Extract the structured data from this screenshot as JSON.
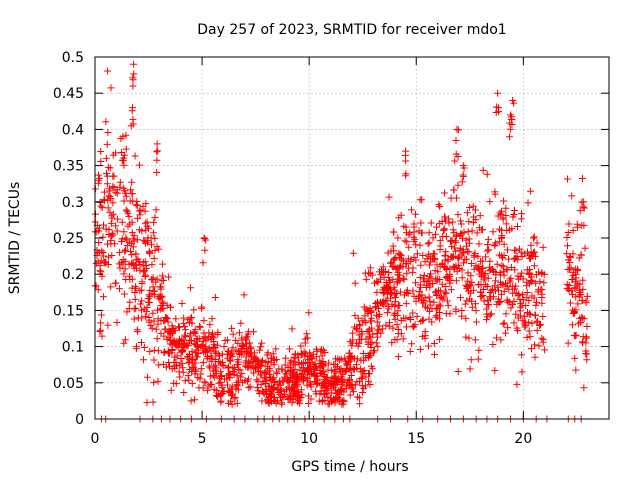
{
  "chart_data": {
    "type": "scatter",
    "title": "Day 257 of 2023, SRMTID for receiver mdo1",
    "xlabel": "GPS time / hours",
    "ylabel": "SRMTID / TECUs",
    "xlim": [
      0,
      24
    ],
    "ylim": [
      0,
      0.5
    ],
    "xticks": [
      0,
      5,
      10,
      15,
      20
    ],
    "xtick_labels": [
      "0",
      "5",
      "10",
      "15",
      "20"
    ],
    "yticks": [
      0,
      0.05,
      0.1,
      0.15,
      0.2,
      0.25,
      0.3,
      0.35,
      0.4,
      0.45,
      0.5
    ],
    "ytick_labels": [
      "0",
      "0.05",
      "0.1",
      "0.15",
      "0.2",
      "0.25",
      "0.3",
      "0.35",
      "0.4",
      "0.45",
      "0.5"
    ],
    "grid": true,
    "marker": "plus",
    "marker_color": "#ff0000",
    "series": [
      {
        "name": "SRMTID",
        "profile": {
          "x": [
            0,
            0.5,
            1,
            1.5,
            2,
            2.5,
            3,
            3.5,
            4,
            4.5,
            5,
            5.5,
            6,
            6.5,
            7,
            7.5,
            8,
            8.5,
            9,
            9.5,
            10,
            10.5,
            11,
            11.5,
            12,
            12.5,
            13,
            13.5,
            14,
            14.5,
            15,
            15.5,
            16,
            16.5,
            17,
            17.5,
            18,
            18.5,
            19,
            19.5,
            20,
            20.5,
            21,
            22,
            22.5,
            23
          ],
          "y": [
            0.22,
            0.27,
            0.28,
            0.26,
            0.22,
            0.19,
            0.16,
            0.11,
            0.09,
            0.1,
            0.1,
            0.09,
            0.06,
            0.07,
            0.09,
            0.07,
            0.05,
            0.045,
            0.05,
            0.055,
            0.07,
            0.06,
            0.05,
            0.045,
            0.07,
            0.1,
            0.14,
            0.17,
            0.19,
            0.2,
            0.2,
            0.18,
            0.2,
            0.21,
            0.22,
            0.2,
            0.19,
            0.2,
            0.21,
            0.2,
            0.18,
            0.17,
            0.16,
            0.2,
            0.18,
            0.15
          ]
        },
        "spread": [
          {
            "x": [
              0,
              3
            ],
            "sd": 0.065
          },
          {
            "x": [
              3,
              7
            ],
            "sd": 0.03
          },
          {
            "x": [
              7,
              12
            ],
            "sd": 0.02
          },
          {
            "x": [
              12,
              14
            ],
            "sd": 0.04
          },
          {
            "x": [
              14,
              23
            ],
            "sd": 0.05
          }
        ],
        "gaps": [
          [
            21,
            22
          ]
        ],
        "peaks": [
          {
            "x": 1.8,
            "y": 0.49
          },
          {
            "x": 1.75,
            "y": 0.43
          },
          {
            "x": 1.3,
            "y": 0.39
          },
          {
            "x": 2.9,
            "y": 0.38
          },
          {
            "x": 5.1,
            "y": 0.25
          },
          {
            "x": 14.5,
            "y": 0.37
          },
          {
            "x": 16.9,
            "y": 0.4
          },
          {
            "x": 18.8,
            "y": 0.45
          },
          {
            "x": 19.5,
            "y": 0.44
          },
          {
            "x": 19.4,
            "y": 0.42
          },
          {
            "x": 17.2,
            "y": 0.35
          },
          {
            "x": 22.8,
            "y": 0.3
          }
        ],
        "zeros": [
          0.3,
          0.5,
          2.1,
          2.7,
          3.1,
          3.5,
          4.0,
          4.5,
          5.2,
          5.9,
          6.5,
          7.0,
          7.6,
          7.9,
          8.3,
          8.6,
          9.0,
          9.3,
          9.8,
          10.2,
          10.7,
          11.2,
          11.6,
          11.9,
          13.2,
          13.8,
          14.6,
          15.3,
          16.0,
          16.6,
          17.2,
          17.8,
          18.3,
          18.8,
          19.4,
          20.0,
          20.6,
          21.1,
          22.1,
          22.4,
          22.7
        ]
      }
    ]
  }
}
